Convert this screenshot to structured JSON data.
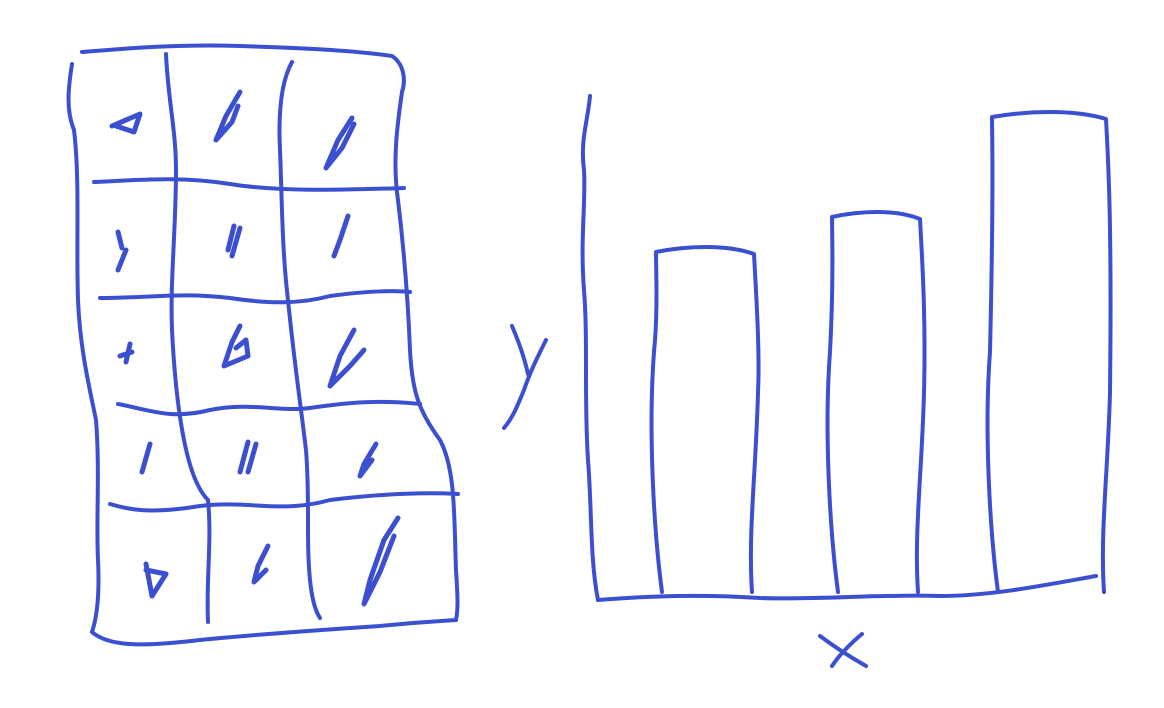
{
  "chart_data": [
    {
      "type": "table",
      "rows": 5,
      "columns": 3
    },
    {
      "type": "bar",
      "xlabel": "x",
      "ylabel": "y",
      "values": [
        340,
        375,
        475
      ],
      "ylim": [
        0,
        500
      ],
      "grid": false
    }
  ],
  "colors": {
    "ink": "#3b4fd1",
    "background": "#ffffff"
  }
}
